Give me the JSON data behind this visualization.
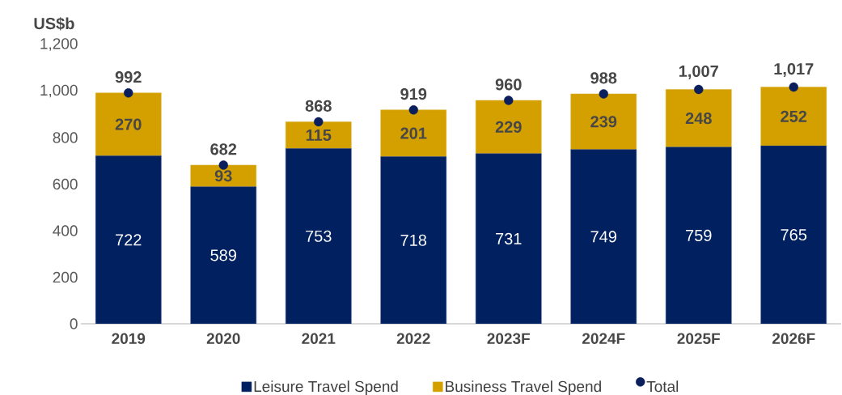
{
  "chart_data": {
    "type": "bar",
    "ylabel": "US$b",
    "categories": [
      "2019",
      "2020",
      "2021",
      "2022",
      "2023F",
      "2024F",
      "2025F",
      "2026F"
    ],
    "series": [
      {
        "name": "Leisure Travel Spend",
        "color": "#002060",
        "values": [
          722,
          589,
          753,
          718,
          731,
          749,
          759,
          765
        ]
      },
      {
        "name": "Business Travel Spend",
        "color": "#d4a000",
        "values": [
          270,
          93,
          115,
          201,
          229,
          239,
          248,
          252
        ]
      },
      {
        "name": "Total",
        "type": "scatter",
        "color": "#0a1f5c",
        "values": [
          992,
          682,
          868,
          919,
          960,
          988,
          1007,
          1017
        ],
        "value_labels": [
          "992",
          "682",
          "868",
          "919",
          "960",
          "988",
          "1,007",
          "1,017"
        ]
      }
    ],
    "stacked": true,
    "data_labels": true,
    "ylim": [
      0,
      1200
    ],
    "yticks": [
      0,
      200,
      400,
      600,
      800,
      {
        "value": 1000,
        "label": "1,000"
      },
      {
        "value": 1200,
        "label": "1,200"
      }
    ],
    "grid": false,
    "legend": "bottom"
  }
}
